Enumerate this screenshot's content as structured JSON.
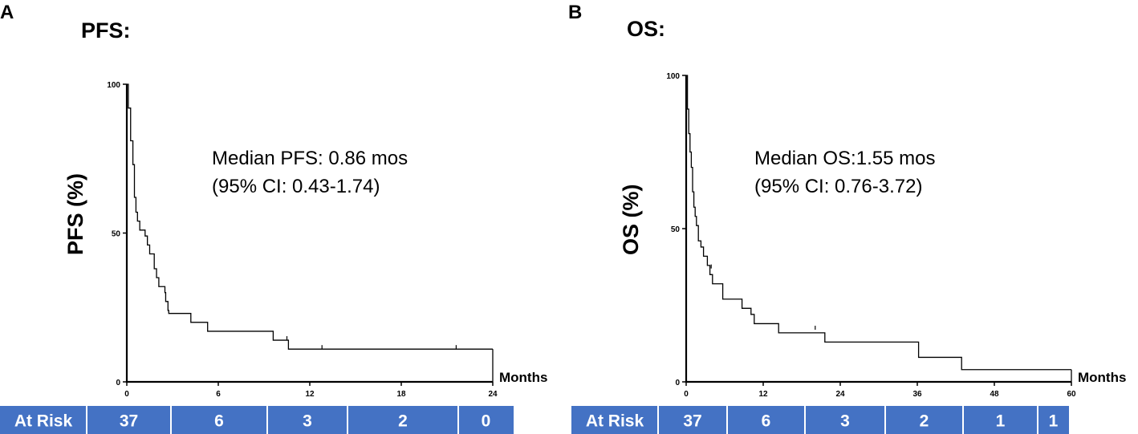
{
  "chart_data": [
    {
      "type": "line",
      "subtype": "kaplan-meier",
      "panel_label": "A",
      "title": "PFS:",
      "ylabel": "PFS (%)",
      "xlabel": "Months",
      "xlim": [
        0,
        24
      ],
      "ylim": [
        0,
        100
      ],
      "xticks": [
        0,
        6,
        12,
        18,
        24
      ],
      "yticks": [
        0,
        50,
        100
      ],
      "annotation": [
        "Median PFS: 0.86 mos",
        "(95% CI: 0.43-1.74)"
      ],
      "series": [
        {
          "name": "PFS",
          "steps": [
            [
              0,
              100
            ],
            [
              0.1,
              92
            ],
            [
              0.25,
              81
            ],
            [
              0.4,
              73
            ],
            [
              0.5,
              62
            ],
            [
              0.6,
              57
            ],
            [
              0.7,
              54
            ],
            [
              0.85,
              51
            ],
            [
              1.2,
              49
            ],
            [
              1.35,
              46
            ],
            [
              1.5,
              43
            ],
            [
              1.8,
              38
            ],
            [
              1.95,
              35
            ],
            [
              2.1,
              32
            ],
            [
              2.5,
              30
            ],
            [
              2.55,
              27
            ],
            [
              2.7,
              24
            ],
            [
              2.75,
              23
            ],
            [
              4.2,
              20
            ],
            [
              5.3,
              17
            ],
            [
              9.6,
              14
            ],
            [
              10.6,
              11
            ],
            [
              24,
              11
            ]
          ],
          "censored": [
            [
              10.5,
              14
            ],
            [
              12.8,
              11
            ],
            [
              21.6,
              11
            ]
          ]
        }
      ],
      "at_risk": {
        "label": "At Risk",
        "times": [
          0,
          6,
          12,
          18,
          24
        ],
        "values": [
          "37",
          "6",
          "3",
          "2",
          "0"
        ]
      }
    },
    {
      "type": "line",
      "subtype": "kaplan-meier",
      "panel_label": "B",
      "title": "OS:",
      "ylabel": "OS (%)",
      "xlabel": "Months",
      "xlim": [
        0,
        60
      ],
      "ylim": [
        0,
        100
      ],
      "xticks": [
        0,
        12,
        24,
        36,
        48,
        60
      ],
      "yticks": [
        0,
        50,
        100
      ],
      "annotation": [
        "Median OS:1.55 mos",
        "(95% CI: 0.76-3.72)"
      ],
      "series": [
        {
          "name": "OS",
          "steps": [
            [
              0,
              100
            ],
            [
              0.2,
              89
            ],
            [
              0.4,
              81
            ],
            [
              0.6,
              75
            ],
            [
              0.8,
              70
            ],
            [
              1.0,
              62
            ],
            [
              1.2,
              57
            ],
            [
              1.4,
              54
            ],
            [
              1.6,
              51
            ],
            [
              1.9,
              46
            ],
            [
              2.3,
              44
            ],
            [
              2.7,
              41
            ],
            [
              3.3,
              38
            ],
            [
              3.7,
              35
            ],
            [
              4.1,
              32
            ],
            [
              5.7,
              27
            ],
            [
              8.7,
              24
            ],
            [
              10.1,
              22
            ],
            [
              10.6,
              19
            ],
            [
              14.4,
              16
            ],
            [
              21.6,
              13
            ],
            [
              36.2,
              8
            ],
            [
              42.9,
              4
            ],
            [
              60,
              4
            ]
          ],
          "censored": [
            [
              20.1,
              17
            ],
            [
              3.9,
              37
            ]
          ]
        }
      ],
      "at_risk": {
        "label": "At Risk",
        "times": [
          0,
          12,
          24,
          36,
          48,
          60
        ],
        "values": [
          "37",
          "6",
          "3",
          "2",
          "1",
          "1"
        ]
      }
    }
  ]
}
